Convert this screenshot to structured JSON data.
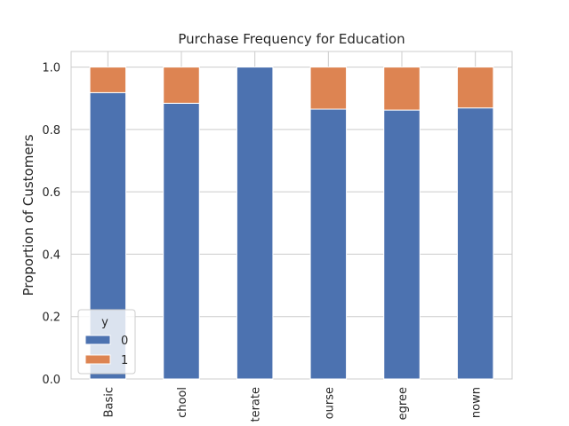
{
  "chart_data": {
    "type": "bar",
    "stacked": true,
    "title": "Purchase Frequency for Education",
    "xlabel": "",
    "ylabel": "Proportion of Customers",
    "ylim": [
      0,
      1.05
    ],
    "yticks": [
      "0.0",
      "0.2",
      "0.4",
      "0.6",
      "0.8",
      "1.0"
    ],
    "categories": [
      "Basic",
      "chool",
      "terate",
      "ourse",
      "egree",
      "nown"
    ],
    "series": [
      {
        "name": "0",
        "color": "#4c72b0",
        "values": [
          0.918,
          0.884,
          1.0,
          0.865,
          0.862,
          0.869
        ]
      },
      {
        "name": "1",
        "color": "#dd8452",
        "values": [
          0.082,
          0.116,
          0.0,
          0.135,
          0.138,
          0.131
        ]
      }
    ],
    "legend": {
      "title": "y",
      "placement": "lower-left"
    },
    "grid": true
  }
}
